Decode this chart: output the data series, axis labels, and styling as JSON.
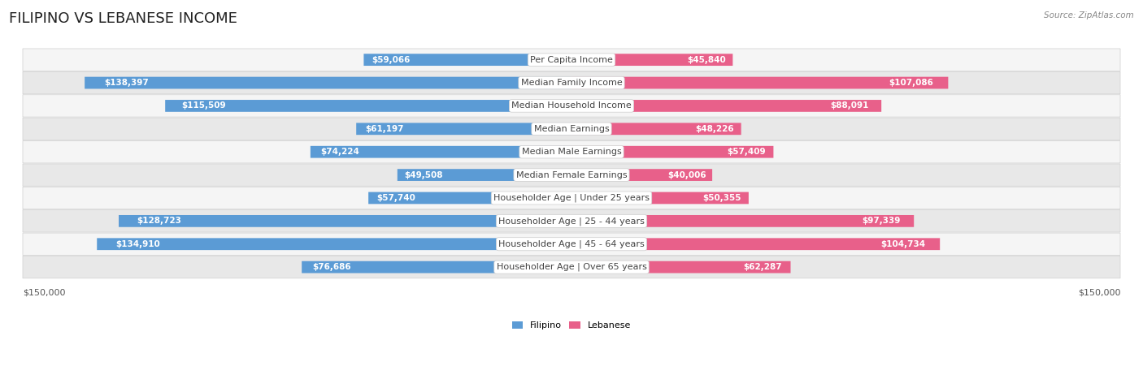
{
  "title": "FILIPINO VS LEBANESE INCOME",
  "source": "Source: ZipAtlas.com",
  "categories": [
    "Per Capita Income",
    "Median Family Income",
    "Median Household Income",
    "Median Earnings",
    "Median Male Earnings",
    "Median Female Earnings",
    "Householder Age | Under 25 years",
    "Householder Age | 25 - 44 years",
    "Householder Age | 45 - 64 years",
    "Householder Age | Over 65 years"
  ],
  "filipino_values": [
    59066,
    138397,
    115509,
    61197,
    74224,
    49508,
    57740,
    128723,
    134910,
    76686
  ],
  "lebanese_values": [
    45840,
    107086,
    88091,
    48226,
    57409,
    40006,
    50355,
    97339,
    104734,
    62287
  ],
  "max_value": 150000,
  "filipino_color_light": "#aec6e0",
  "filipino_color_dark": "#5b9bd5",
  "lebanese_color_light": "#f4aec8",
  "lebanese_color_dark": "#e8608a",
  "row_bg_light": "#f5f5f5",
  "row_bg_dark": "#e8e8e8",
  "row_border": "#d0d0d0",
  "label_bg": "#ffffff",
  "title_fontsize": 13,
  "label_fontsize": 8.0,
  "value_fontsize": 7.5,
  "axis_fontsize": 8,
  "white_text_threshold": 30000,
  "background_color": "#ffffff",
  "text_dark": "#444444",
  "text_white": "#ffffff"
}
